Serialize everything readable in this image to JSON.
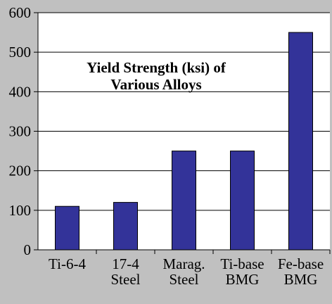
{
  "chart_data": {
    "type": "bar",
    "title_lines": [
      "Yield Strength (ksi) of",
      "Various Alloys"
    ],
    "categories": [
      [
        "Ti-6-4"
      ],
      [
        "17-4",
        "Steel"
      ],
      [
        "Marag.",
        "Steel"
      ],
      [
        "Ti-base",
        "BMG"
      ],
      [
        "Fe-base",
        "BMG"
      ]
    ],
    "values": [
      110,
      120,
      250,
      250,
      550
    ],
    "ylim": [
      0,
      600
    ],
    "yticks": [
      0,
      100,
      200,
      300,
      400,
      500,
      600
    ],
    "grid": true,
    "bar_color": "#333399",
    "plot_background": "#ffffff",
    "figure_background": "#c0c0c0"
  }
}
